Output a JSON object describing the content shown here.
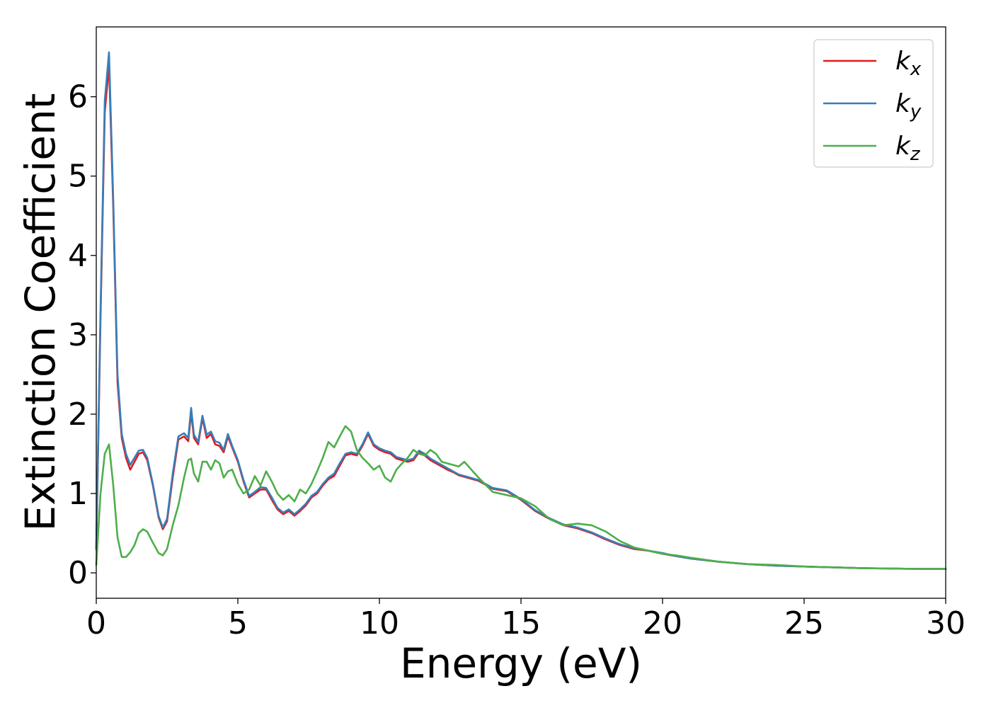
{
  "chart_data": {
    "type": "line",
    "title": "",
    "xlabel": "Energy (eV)",
    "ylabel": "Extinction Coefficient",
    "xlim": [
      0,
      30
    ],
    "ylim": [
      -0.32,
      6.88
    ],
    "xticks": [
      0,
      5,
      10,
      15,
      20,
      25,
      30
    ],
    "yticks": [
      0,
      1,
      2,
      3,
      4,
      5,
      6
    ],
    "grid": false,
    "legend_position": "top-right",
    "series": [
      {
        "name": "k_x",
        "label_main": "k",
        "label_sub": "x",
        "color": "#e41a1c",
        "x": [
          0,
          0.15,
          0.3,
          0.45,
          0.6,
          0.75,
          0.9,
          1.05,
          1.2,
          1.35,
          1.5,
          1.65,
          1.8,
          2.0,
          2.2,
          2.35,
          2.5,
          2.7,
          2.9,
          3.1,
          3.25,
          3.35,
          3.45,
          3.6,
          3.75,
          3.9,
          4.05,
          4.2,
          4.35,
          4.5,
          4.65,
          4.8,
          5.0,
          5.2,
          5.4,
          5.6,
          5.8,
          6.0,
          6.2,
          6.4,
          6.6,
          6.8,
          7.0,
          7.2,
          7.4,
          7.6,
          7.8,
          8.0,
          8.2,
          8.4,
          8.6,
          8.8,
          9.0,
          9.2,
          9.4,
          9.6,
          9.8,
          10.0,
          10.2,
          10.4,
          10.6,
          10.8,
          11.0,
          11.2,
          11.4,
          11.6,
          11.8,
          12.0,
          12.2,
          12.4,
          12.6,
          12.8,
          13.0,
          13.5,
          14.0,
          14.5,
          15.0,
          15.5,
          16.0,
          16.5,
          17.0,
          17.5,
          18.0,
          18.5,
          19.0,
          19.5,
          20.0,
          20.5,
          21.0,
          22.0,
          23.0,
          24.0,
          25.0,
          26.0,
          27.0,
          28.0,
          29.0,
          30.0
        ],
        "y": [
          0.3,
          3.2,
          5.8,
          6.4,
          4.6,
          2.4,
          1.7,
          1.45,
          1.3,
          1.4,
          1.5,
          1.52,
          1.42,
          1.1,
          0.7,
          0.55,
          0.65,
          1.2,
          1.68,
          1.72,
          1.66,
          2.02,
          1.7,
          1.62,
          1.95,
          1.7,
          1.75,
          1.62,
          1.6,
          1.52,
          1.72,
          1.58,
          1.4,
          1.15,
          0.95,
          1.0,
          1.05,
          1.05,
          0.92,
          0.8,
          0.74,
          0.78,
          0.72,
          0.78,
          0.85,
          0.95,
          1.0,
          1.1,
          1.18,
          1.22,
          1.35,
          1.48,
          1.5,
          1.48,
          1.6,
          1.75,
          1.6,
          1.55,
          1.52,
          1.5,
          1.44,
          1.42,
          1.4,
          1.42,
          1.52,
          1.48,
          1.42,
          1.38,
          1.34,
          1.3,
          1.27,
          1.23,
          1.21,
          1.16,
          1.06,
          1.03,
          0.92,
          0.78,
          0.68,
          0.6,
          0.56,
          0.5,
          0.42,
          0.35,
          0.3,
          0.28,
          0.24,
          0.21,
          0.18,
          0.14,
          0.11,
          0.09,
          0.08,
          0.07,
          0.06,
          0.055,
          0.05,
          0.05
        ]
      },
      {
        "name": "k_y",
        "label_main": "k",
        "label_sub": "y",
        "color": "#377eb8",
        "x": [
          0,
          0.15,
          0.3,
          0.45,
          0.6,
          0.75,
          0.9,
          1.05,
          1.2,
          1.35,
          1.5,
          1.65,
          1.8,
          2.0,
          2.2,
          2.35,
          2.5,
          2.7,
          2.9,
          3.1,
          3.25,
          3.35,
          3.45,
          3.6,
          3.75,
          3.9,
          4.05,
          4.2,
          4.35,
          4.5,
          4.65,
          4.8,
          5.0,
          5.2,
          5.4,
          5.6,
          5.8,
          6.0,
          6.2,
          6.4,
          6.6,
          6.8,
          7.0,
          7.2,
          7.4,
          7.6,
          7.8,
          8.0,
          8.2,
          8.4,
          8.6,
          8.8,
          9.0,
          9.2,
          9.4,
          9.6,
          9.8,
          10.0,
          10.2,
          10.4,
          10.6,
          10.8,
          11.0,
          11.2,
          11.4,
          11.6,
          11.8,
          12.0,
          12.2,
          12.4,
          12.6,
          12.8,
          13.0,
          13.5,
          14.0,
          14.5,
          15.0,
          15.5,
          16.0,
          16.5,
          17.0,
          17.5,
          18.0,
          18.5,
          19.0,
          19.5,
          20.0,
          20.5,
          21.0,
          22.0,
          23.0,
          24.0,
          25.0,
          26.0,
          27.0,
          28.0,
          29.0,
          30.0
        ],
        "y": [
          0.3,
          3.3,
          5.95,
          6.56,
          4.7,
          2.5,
          1.75,
          1.5,
          1.36,
          1.45,
          1.54,
          1.55,
          1.45,
          1.12,
          0.72,
          0.57,
          0.68,
          1.25,
          1.72,
          1.76,
          1.7,
          2.08,
          1.74,
          1.65,
          1.98,
          1.74,
          1.78,
          1.66,
          1.64,
          1.55,
          1.75,
          1.6,
          1.42,
          1.17,
          0.97,
          1.02,
          1.08,
          1.07,
          0.95,
          0.82,
          0.76,
          0.8,
          0.74,
          0.8,
          0.87,
          0.97,
          1.02,
          1.12,
          1.2,
          1.25,
          1.38,
          1.5,
          1.52,
          1.5,
          1.62,
          1.77,
          1.62,
          1.57,
          1.54,
          1.52,
          1.46,
          1.44,
          1.42,
          1.44,
          1.54,
          1.5,
          1.44,
          1.4,
          1.36,
          1.32,
          1.28,
          1.24,
          1.22,
          1.17,
          1.07,
          1.04,
          0.93,
          0.79,
          0.69,
          0.61,
          0.57,
          0.51,
          0.43,
          0.36,
          0.31,
          0.28,
          0.25,
          0.21,
          0.18,
          0.14,
          0.11,
          0.09,
          0.08,
          0.07,
          0.06,
          0.055,
          0.05,
          0.05
        ]
      },
      {
        "name": "k_z",
        "label_main": "k",
        "label_sub": "z",
        "color": "#4daf4a",
        "x": [
          0,
          0.15,
          0.3,
          0.45,
          0.6,
          0.75,
          0.9,
          1.05,
          1.2,
          1.35,
          1.5,
          1.65,
          1.8,
          2.0,
          2.2,
          2.35,
          2.5,
          2.7,
          2.9,
          3.1,
          3.25,
          3.35,
          3.45,
          3.6,
          3.75,
          3.9,
          4.05,
          4.2,
          4.35,
          4.5,
          4.65,
          4.8,
          5.0,
          5.2,
          5.4,
          5.6,
          5.8,
          6.0,
          6.2,
          6.4,
          6.6,
          6.8,
          7.0,
          7.2,
          7.4,
          7.6,
          7.8,
          8.0,
          8.2,
          8.4,
          8.6,
          8.8,
          9.0,
          9.2,
          9.4,
          9.6,
          9.8,
          10.0,
          10.2,
          10.4,
          10.6,
          10.8,
          11.0,
          11.2,
          11.4,
          11.6,
          11.8,
          12.0,
          12.2,
          12.4,
          12.6,
          12.8,
          13.0,
          13.5,
          14.0,
          14.5,
          15.0,
          15.5,
          16.0,
          16.5,
          17.0,
          17.5,
          18.0,
          18.5,
          19.0,
          19.5,
          20.0,
          20.5,
          21.0,
          22.0,
          23.0,
          24.0,
          25.0,
          26.0,
          27.0,
          28.0,
          29.0,
          30.0
        ],
        "y": [
          0.1,
          1.0,
          1.5,
          1.62,
          1.1,
          0.45,
          0.2,
          0.2,
          0.26,
          0.35,
          0.5,
          0.55,
          0.52,
          0.38,
          0.25,
          0.22,
          0.3,
          0.6,
          0.85,
          1.2,
          1.42,
          1.44,
          1.25,
          1.15,
          1.4,
          1.4,
          1.3,
          1.42,
          1.38,
          1.2,
          1.28,
          1.3,
          1.12,
          1.0,
          1.05,
          1.22,
          1.1,
          1.28,
          1.15,
          1.0,
          0.92,
          0.98,
          0.9,
          1.05,
          1.0,
          1.12,
          1.28,
          1.45,
          1.65,
          1.58,
          1.72,
          1.85,
          1.78,
          1.55,
          1.45,
          1.38,
          1.3,
          1.35,
          1.2,
          1.15,
          1.3,
          1.38,
          1.45,
          1.55,
          1.5,
          1.48,
          1.55,
          1.5,
          1.4,
          1.38,
          1.36,
          1.34,
          1.4,
          1.2,
          1.02,
          0.98,
          0.94,
          0.84,
          0.68,
          0.6,
          0.62,
          0.6,
          0.52,
          0.4,
          0.32,
          0.28,
          0.24,
          0.22,
          0.19,
          0.14,
          0.11,
          0.1,
          0.08,
          0.07,
          0.06,
          0.055,
          0.05,
          0.05
        ]
      }
    ]
  }
}
